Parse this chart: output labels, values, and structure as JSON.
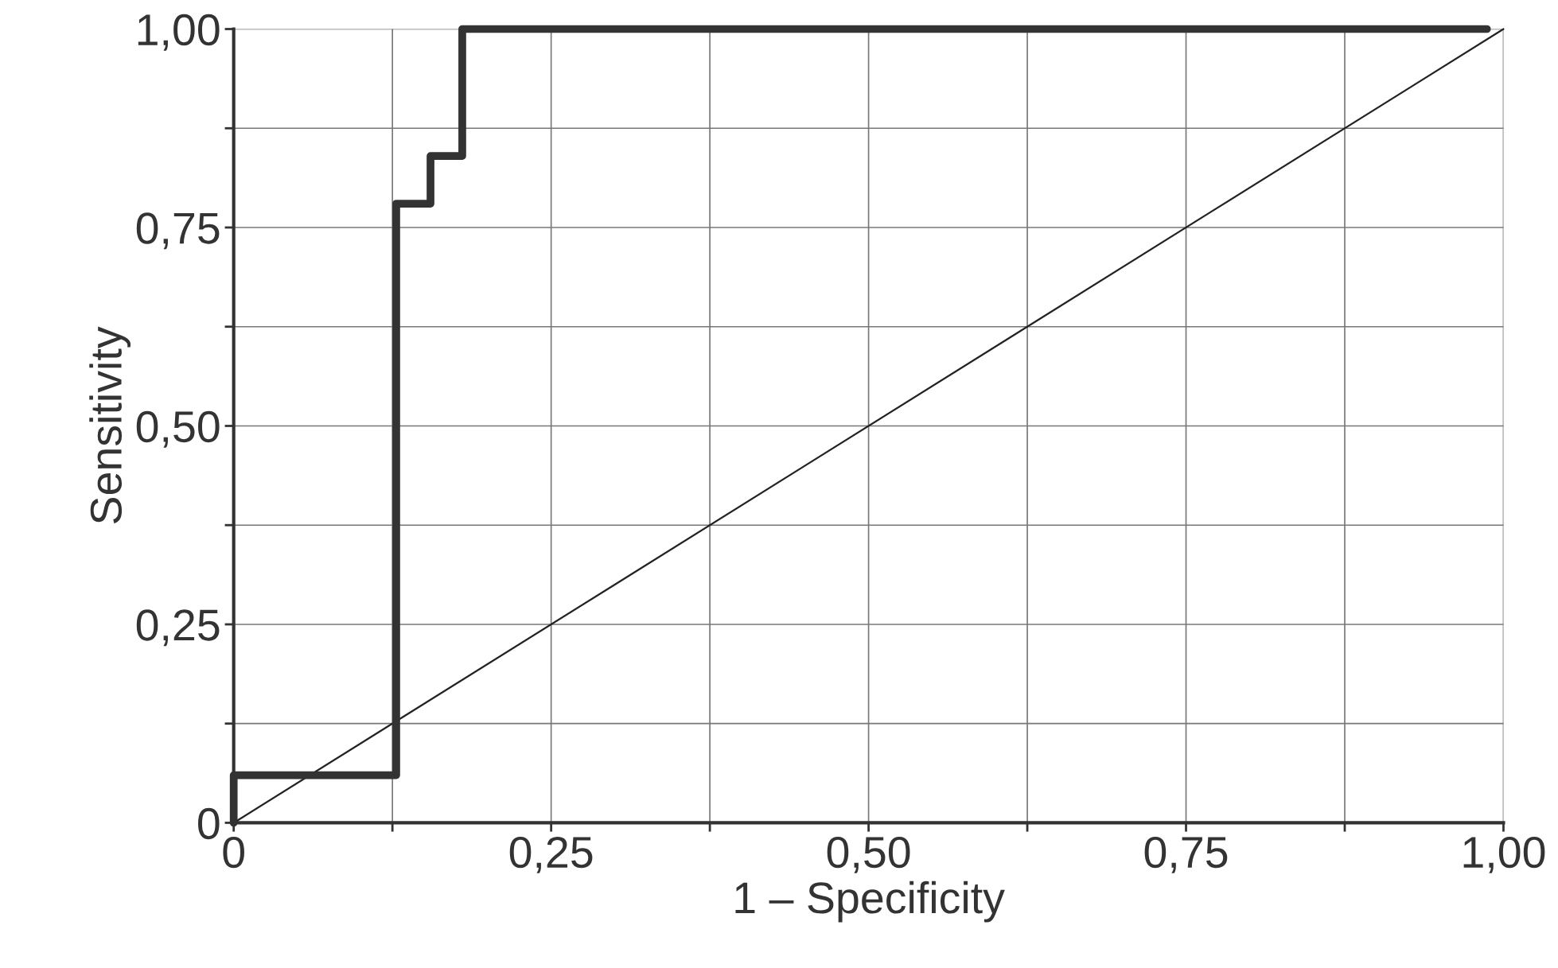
{
  "chart_data": {
    "type": "line",
    "xlabel": "1 – Specificity",
    "ylabel": "Sensitivity",
    "xlim": [
      0,
      1
    ],
    "ylim": [
      0,
      1
    ],
    "xticks": [
      {
        "value": 0,
        "label": "0"
      },
      {
        "value": 0.125,
        "label": null
      },
      {
        "value": 0.25,
        "label": "0,25"
      },
      {
        "value": 0.375,
        "label": null
      },
      {
        "value": 0.5,
        "label": "0,50"
      },
      {
        "value": 0.625,
        "label": null
      },
      {
        "value": 0.75,
        "label": "0,75"
      },
      {
        "value": 0.875,
        "label": null
      },
      {
        "value": 1,
        "label": "1,00"
      }
    ],
    "yticks": [
      {
        "value": 0,
        "label": "0"
      },
      {
        "value": 0.125,
        "label": null
      },
      {
        "value": 0.25,
        "label": "0,25"
      },
      {
        "value": 0.375,
        "label": null
      },
      {
        "value": 0.5,
        "label": "0,50"
      },
      {
        "value": 0.625,
        "label": null
      },
      {
        "value": 0.75,
        "label": "0,75"
      },
      {
        "value": 0.875,
        "label": null
      },
      {
        "value": 1,
        "label": "1,00"
      }
    ],
    "grid": true,
    "marker": "none",
    "series": [
      {
        "color": "#333333",
        "x": [
          0,
          0,
          0.128,
          0.128,
          0.155,
          0.155,
          0.18,
          0.18,
          0.987
        ],
        "values": [
          0,
          0.06,
          0.06,
          0.78,
          0.78,
          0.84,
          0.84,
          1.0,
          1.0
        ]
      },
      {
        "color": "#222222",
        "x": [
          0,
          1
        ],
        "values": [
          0,
          1
        ]
      }
    ]
  }
}
